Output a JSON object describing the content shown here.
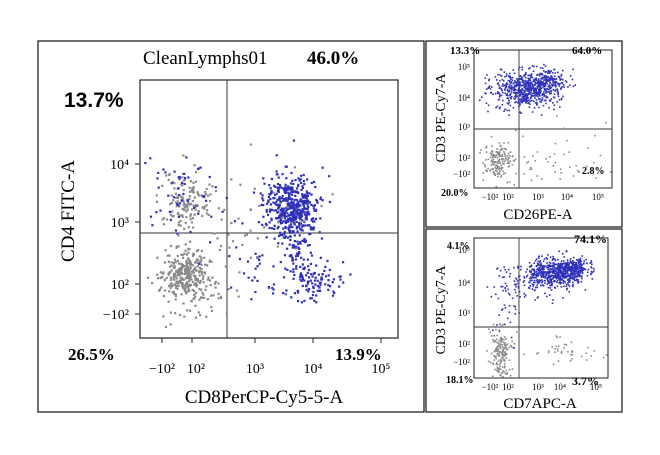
{
  "panels": [
    {
      "id": "main",
      "gate_name": "CleanLymphs01",
      "gate_pct": "46.0%",
      "q_ul": "13.7%",
      "q_ll": "26.5%",
      "q_lr": "13.9%",
      "xlabel": "CD8PerCP-Cy5-5-A",
      "ylabel": "CD4 FITC-A",
      "xticks": [
        "−10²",
        "10²",
        "10³",
        "10⁴",
        "10⁵"
      ],
      "yticks": [
        "10⁴",
        "10³",
        "10²",
        "−10²"
      ]
    },
    {
      "id": "top-right",
      "q_ul": "13.3%",
      "q_ur": "64.0%",
      "q_ll": "20.0%",
      "q_lr": "2.8%",
      "xlabel": "CD26PE-A",
      "ylabel": "CD3 PE-Cy7-A",
      "xticks": [
        "−10²",
        "10²",
        "10³",
        "10⁴",
        "10⁵"
      ],
      "yticks": [
        "10⁵",
        "10⁴",
        "10³",
        "10²",
        "−10²"
      ]
    },
    {
      "id": "bottom-right",
      "q_ul": "4.1%",
      "q_ur": "74.1%",
      "q_ll": "18.1%",
      "q_lr": "3.7%",
      "xlabel": "CD7APC-A",
      "ylabel": "CD3 PE-Cy7-A",
      "xticks": [
        "−10²",
        "10²",
        "10³",
        "10⁴",
        "10⁵"
      ],
      "yticks": [
        "10⁵",
        "10⁴",
        "10³",
        "10²",
        "−10²"
      ]
    }
  ],
  "chart_data": [
    {
      "type": "scatter",
      "title": "CleanLymphs01 46.0%",
      "xlabel": "CD8PerCP-Cy5-5-A",
      "ylabel": "CD4 FITC-A",
      "scale": "biexponential",
      "quadrants": {
        "upper_left": 13.7,
        "lower_left": 26.5,
        "lower_right": 13.9
      },
      "colors": {
        "high": "#2e31b8",
        "low": "#8a8a8a"
      }
    },
    {
      "type": "scatter",
      "xlabel": "CD26PE-A",
      "ylabel": "CD3 PE-Cy7-A",
      "scale": "biexponential",
      "quadrants": {
        "upper_left": 13.3,
        "upper_right": 64.0,
        "lower_left": 20.0,
        "lower_right": 2.8
      },
      "colors": {
        "high": "#2e31b8",
        "low": "#8a8a8a"
      }
    },
    {
      "type": "scatter",
      "xlabel": "CD7APC-A",
      "ylabel": "CD3 PE-Cy7-A",
      "scale": "biexponential",
      "quadrants": {
        "upper_left": 4.1,
        "upper_right": 74.1,
        "lower_left": 18.1,
        "lower_right": 3.7
      },
      "colors": {
        "high": "#2e31b8",
        "low": "#8a8a8a"
      }
    }
  ]
}
